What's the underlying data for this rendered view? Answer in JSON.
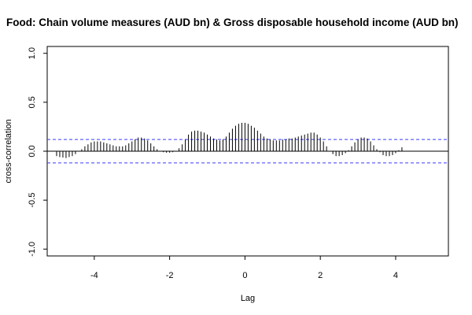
{
  "chart_data": {
    "type": "bar",
    "title": "Food: Chain volume measures (AUD bn) & Gross disposable household income (AUD bn)",
    "xlabel": "Lag",
    "ylabel": "cross-correlation",
    "xlim": [
      -5.25,
      5.4
    ],
    "ylim": [
      -1.07,
      1.07
    ],
    "xticks": [
      "-4",
      "-2",
      "0",
      "2",
      "4"
    ],
    "xtick_values": [
      -4,
      -2,
      0,
      2,
      4
    ],
    "yticks": [
      "-1.0",
      "-0.5",
      "0.0",
      "0.5",
      "1.0"
    ],
    "ytick_values": [
      -1,
      -0.5,
      0,
      0.5,
      1
    ],
    "confidence_limit": 0.12,
    "lag_step": 0.0833333,
    "lag_start": -5,
    "values": [
      -0.05,
      -0.06,
      -0.065,
      -0.07,
      -0.06,
      -0.05,
      -0.03,
      0.0,
      0.02,
      0.05,
      0.07,
      0.09,
      0.1,
      0.1,
      0.1,
      0.09,
      0.08,
      0.07,
      0.06,
      0.05,
      0.05,
      0.05,
      0.06,
      0.08,
      0.1,
      0.12,
      0.14,
      0.14,
      0.13,
      0.11,
      0.08,
      0.05,
      0.02,
      0.0,
      -0.01,
      -0.015,
      -0.015,
      -0.01,
      0.0,
      0.03,
      0.07,
      0.12,
      0.17,
      0.2,
      0.21,
      0.21,
      0.2,
      0.19,
      0.17,
      0.15,
      0.13,
      0.12,
      0.11,
      0.12,
      0.15,
      0.19,
      0.23,
      0.26,
      0.28,
      0.29,
      0.29,
      0.28,
      0.26,
      0.24,
      0.21,
      0.18,
      0.15,
      0.13,
      0.12,
      0.11,
      0.11,
      0.11,
      0.12,
      0.12,
      0.13,
      0.13,
      0.14,
      0.15,
      0.16,
      0.17,
      0.18,
      0.19,
      0.19,
      0.17,
      0.14,
      0.1,
      0.05,
      0.0,
      -0.03,
      -0.05,
      -0.05,
      -0.04,
      -0.02,
      0.01,
      0.05,
      0.09,
      0.12,
      0.14,
      0.14,
      0.13,
      0.1,
      0.06,
      0.02,
      -0.01,
      -0.04,
      -0.05,
      -0.05,
      -0.04,
      -0.02,
      0.01,
      0.04
    ]
  }
}
